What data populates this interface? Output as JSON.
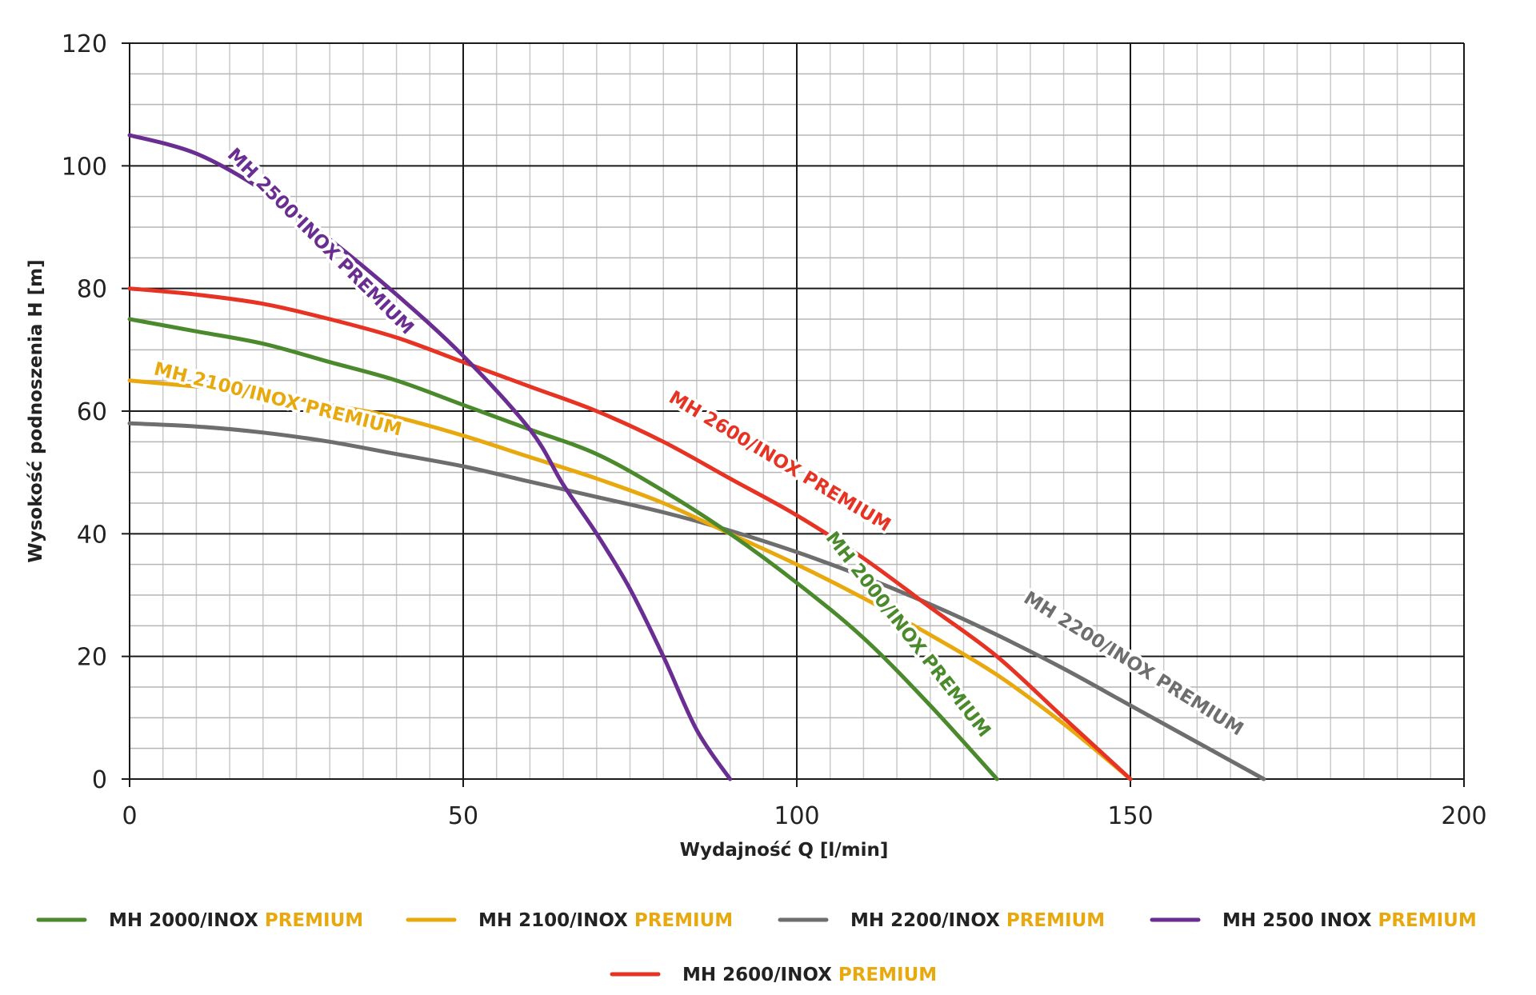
{
  "chart_data": {
    "type": "line",
    "xlabel": "Wydajność Q [l/min]",
    "ylabel": "Wysokość podnoszenia H [m]",
    "xlim": [
      0,
      200
    ],
    "ylim": [
      0,
      120
    ],
    "xticks": [
      0,
      50,
      100,
      150,
      200
    ],
    "yticks": [
      0,
      20,
      40,
      60,
      80,
      100,
      120
    ],
    "grid": true,
    "legend_position": "bottom",
    "series": [
      {
        "name": "MH 2000/INOX",
        "name_suffix": "PREMIUM",
        "color": "#4a8a2c",
        "label": "MH 2000/INOX PREMIUM",
        "x": [
          0,
          10,
          20,
          30,
          40,
          50,
          60,
          70,
          80,
          90,
          100,
          110,
          120,
          130
        ],
        "y": [
          75,
          73,
          71,
          68,
          65,
          61,
          57,
          53,
          47,
          40,
          32,
          23,
          12,
          0
        ]
      },
      {
        "name": "MH 2100/INOX",
        "name_suffix": "PREMIUM",
        "color": "#e8a90f",
        "label": "MH 2100/INOX PREMIUM",
        "x": [
          0,
          10,
          20,
          30,
          40,
          50,
          60,
          70,
          80,
          90,
          100,
          110,
          120,
          130,
          140,
          150
        ],
        "y": [
          65,
          64,
          63,
          61,
          59,
          56,
          52.5,
          49,
          45,
          40,
          35,
          29.5,
          23.5,
          17,
          9,
          0
        ]
      },
      {
        "name": "MH 2200/INOX",
        "name_suffix": "PREMIUM",
        "color": "#6e6e6e",
        "label": "MH 2200/INOX PREMIUM",
        "x": [
          0,
          10,
          20,
          30,
          40,
          50,
          60,
          70,
          80,
          90,
          100,
          110,
          120,
          130,
          140,
          150,
          160,
          170
        ],
        "y": [
          58,
          57.5,
          56.5,
          55,
          53,
          51,
          48.5,
          46,
          43.5,
          40.5,
          37,
          33,
          28.5,
          23.5,
          18,
          12,
          6,
          0
        ]
      },
      {
        "name": "MH 2500 INOX",
        "name_suffix": "PREMIUM",
        "color": "#6a2d91",
        "label": "MH 2500 INOX PREMIUM",
        "x": [
          0,
          10,
          20,
          30,
          40,
          50,
          60,
          65,
          70,
          75,
          80,
          85,
          90
        ],
        "y": [
          105,
          102,
          96,
          88,
          79,
          69,
          57,
          48,
          40,
          31,
          20,
          8,
          0
        ]
      },
      {
        "name": "MH 2600/INOX",
        "name_suffix": "PREMIUM",
        "color": "#e63323",
        "label": "MH 2600/INOX PREMIUM",
        "x": [
          0,
          10,
          20,
          30,
          40,
          50,
          60,
          70,
          80,
          90,
          100,
          110,
          120,
          130,
          140,
          150
        ],
        "y": [
          80,
          79,
          77.5,
          75,
          72,
          68,
          64,
          60,
          55,
          49,
          43,
          36,
          28,
          20,
          10,
          0
        ]
      }
    ]
  }
}
